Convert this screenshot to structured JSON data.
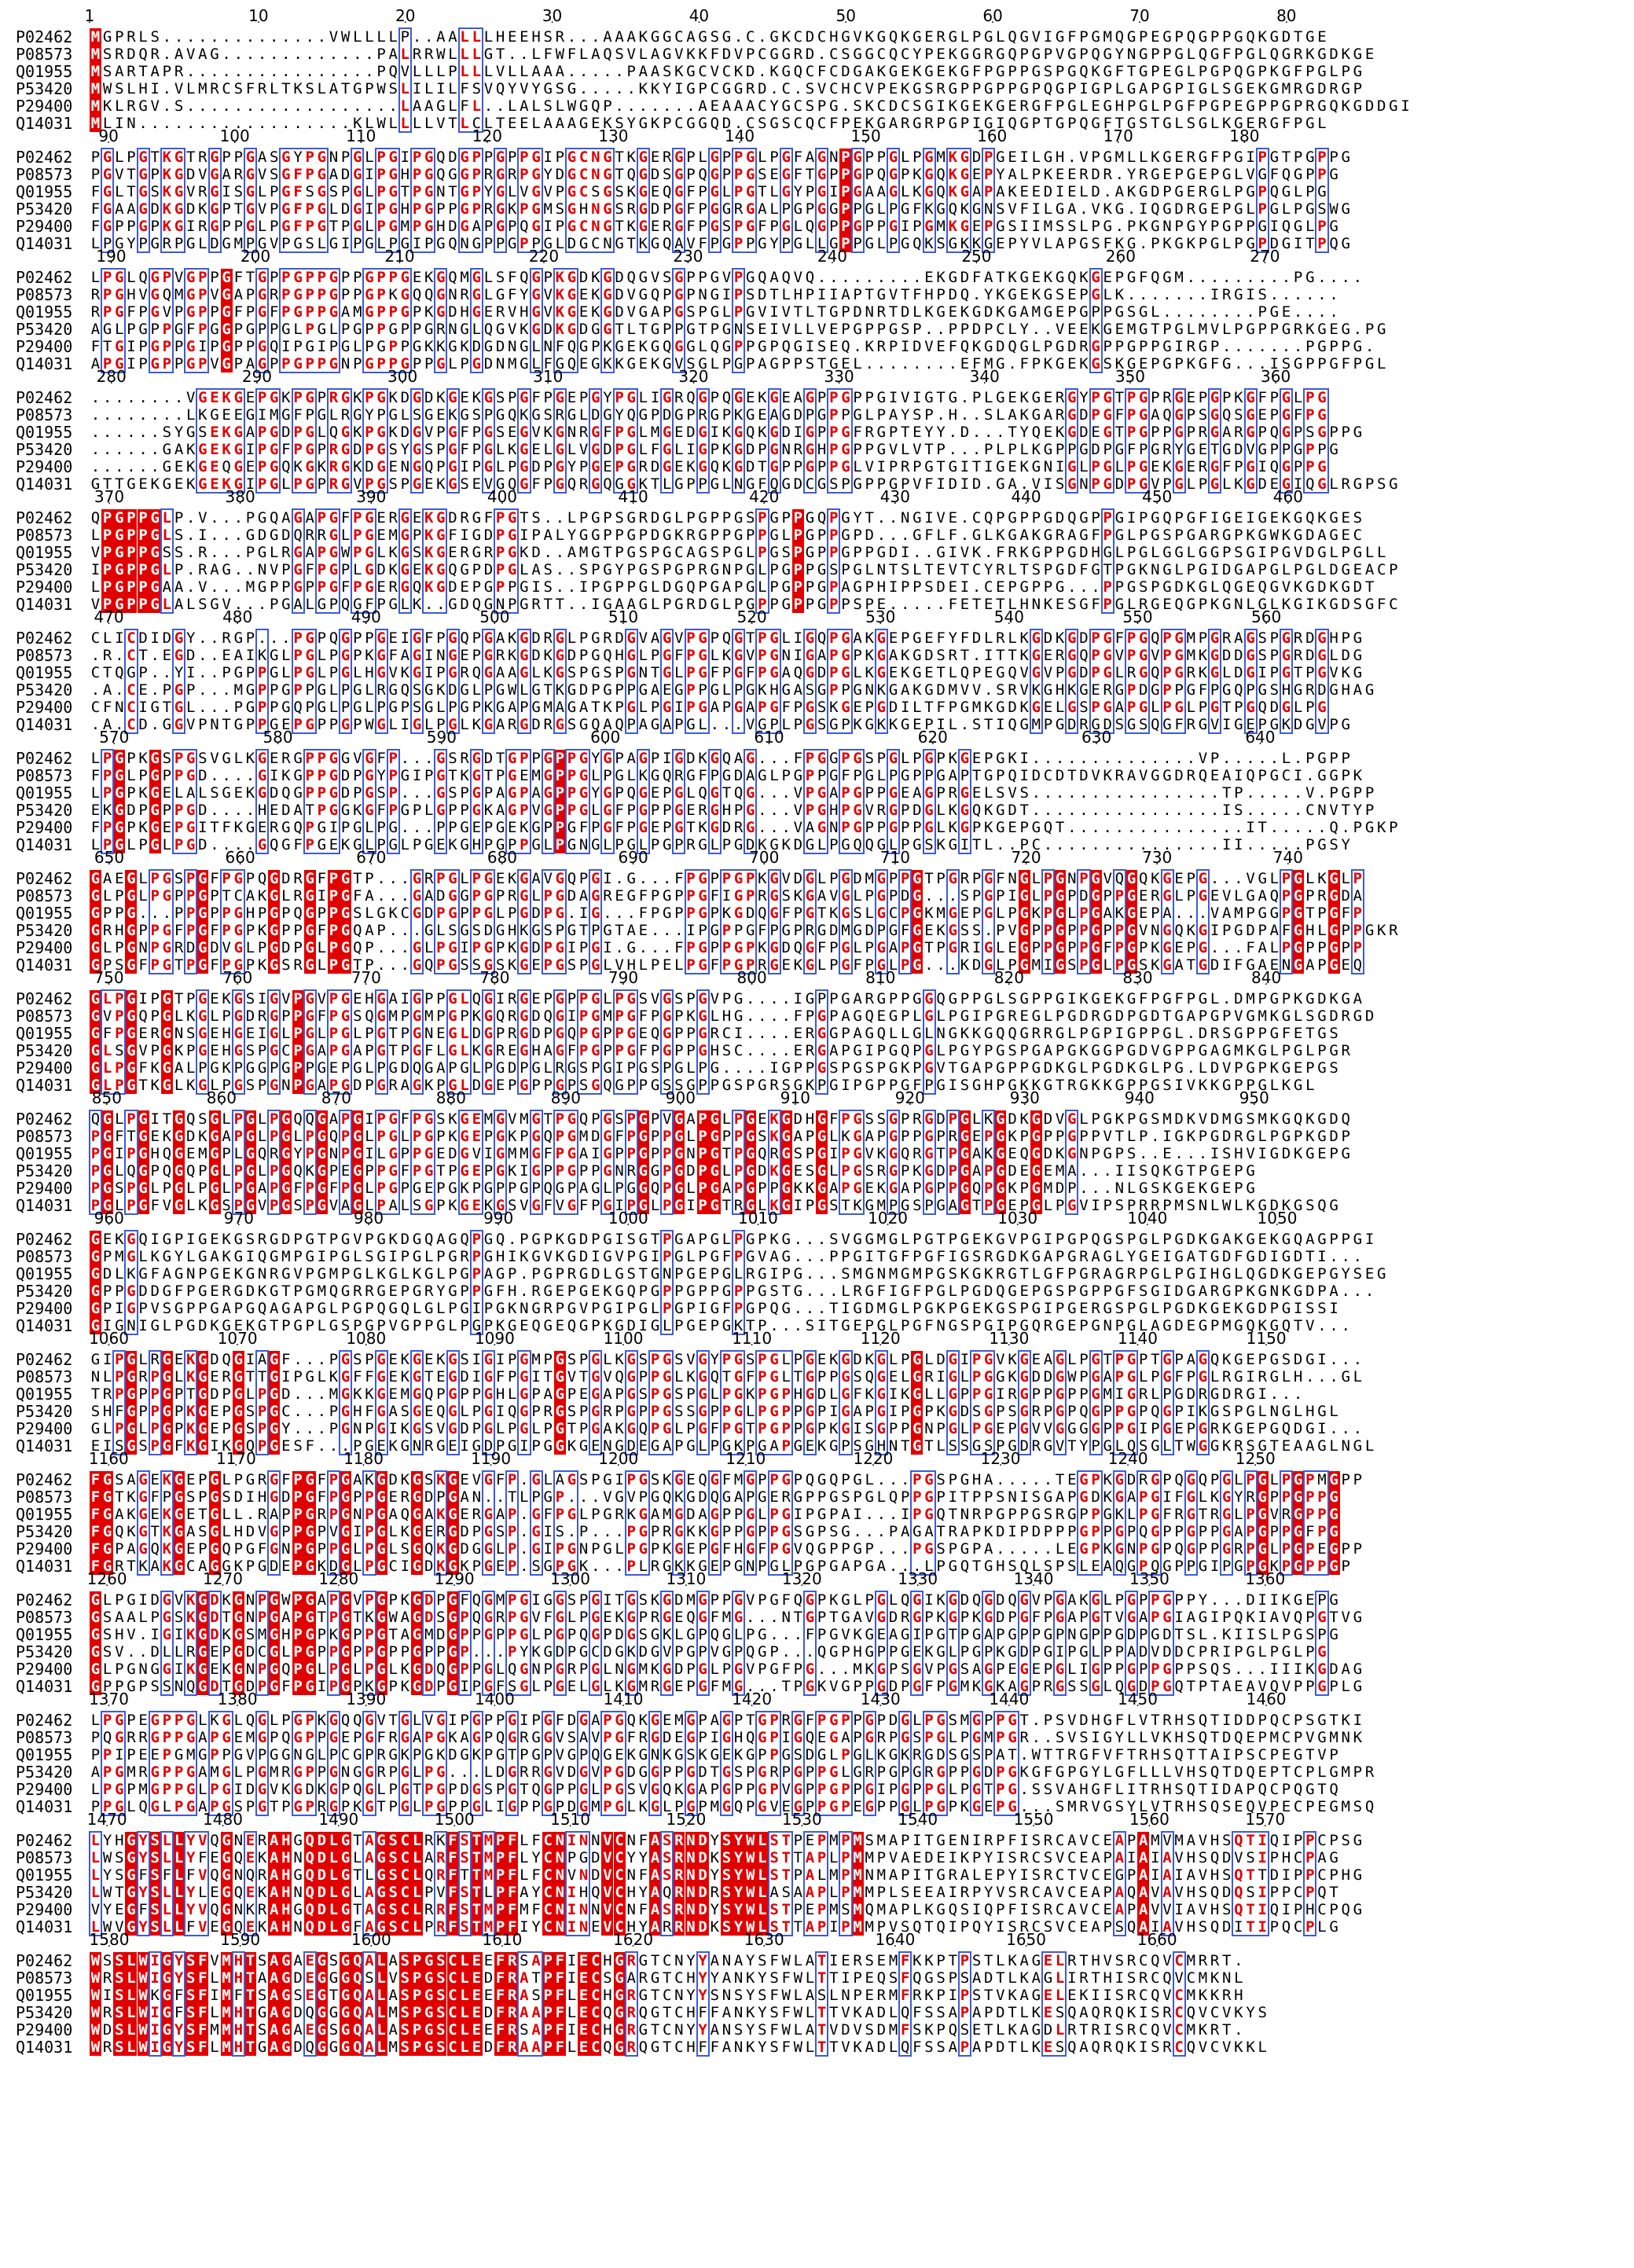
{
  "figure": {
    "type": "multiple-sequence-alignment",
    "colors": {
      "identical_bg": "#e10000",
      "identical_fg": "#ffffff",
      "similar_fg": "#e10000",
      "box_border": "#3d5bd6",
      "text": "#000000"
    },
    "sequence_names": [
      "P02462",
      "P08573",
      "Q01955",
      "P53420",
      "P29400",
      "Q14031"
    ],
    "blocks": [
      {
        "ruler": [
          "1",
          "10",
          "20",
          "30",
          "40",
          "50",
          "60",
          "70",
          "80"
        ],
        "rows": [
          "MGPRLS..............VWLLLLP..AALLLHEEHSR...AAAKGGCAGSG.C.GKCDCHGVKGQKGERGLPGLQGVIGFPGMQGPEGPQGPPGQKGDTGE",
          "MSRDQR.AVAG.............PALRRWLLLGT..LFWFLAQSVLAGVKKFDVPCGGRD.CSGGCQCYPEKGGRGQPGPVGPQGYNGPPGLQGFPGLQGRKGDKGE",
          "MSARTAPR................PQVLLLPLLLVLLAAA.....PAASKGCVCKD.KGQCFCDGAKGEKGEKGFPGPPGSPGQKGFTGPEGLPGPQGPKGFPGLPG",
          "MWSLHI.VLMRCSFRLTKSLATGPWSLILILFSVQYVYGSG.....KKYIGPCGGRD.C.SVCHCVPEKGSRGPPGPPGPQGPIGPLGAPGPIGLSGEKGMRGDRGP",
          "MKLRGV.S..................LAAGLFL..LALSLWGQP.......AEAAACYGCSPG.SKCDCSGIKGEKGERGFPGLEGHPGLPGFPGPEGPPGPRGQKGDDGI",
          "MLIN..................KLWLLLLVTLCLTEELAAAGEKSYGKPCGGQD.CSGSCQCFPEKGARGRPGPIGIQGPTGPQGFTGSTGLSGLKGERGFPGL"
        ]
      },
      {
        "ruler": [
          "90",
          "100",
          "110",
          "120",
          "130",
          "140",
          "150",
          "160",
          "170",
          "180"
        ],
        "rows": [
          "PGLPGTKGTRGPPGASGYPGNPGLPGIPGQDGPPGPPGIPGCNGTKGERGPLGPPGLPGFAGNPGPPGLPGMKGDPGEILGH.VPGMLLKGERGFPGIPGTPGPPG",
          "PGVTGPKGDVGARGVSGFPGADGIPGHPGQGGPRGRPGYDGCNGTQGDSGPQGPPGSEGFTGPPGPQGPKGQKGEPYALPKEERDR.YRGEPGEPGLVGFQGPPG",
          "FGLTGSKGVRGISGLPGFSGSPGLPGTPGNTGPYGLVGVPGCSGSKGEQGFPGLPGTLGYPGIPGAAGLKGQKGAPAKEEDIELD.AKGDPGERGLPGPQGLPG",
          "FGAAGDKGDKGPTGVPGFPGLDGIPGHPGPPGPRGKPGMSGHNGSRGDPGFPGGRGALPGPGGPPGLPGFKGQKGNSVFILGA.VKG.IQGDRGEPGLPGLPGSWG",
          "FGPPGPKGIRGPPGLPGFPGTPGLPGMPGHDGAPGPQGIPGCNGTKGERGFPGSPGFPGLQGPPGPPGIPGMKGEPGSIIMSSLPG.PKGNPGYPGPPGIQGLPG",
          "LPGYPGRPGLDGMPGVPGSLGIPGLPGIPGQNGPPGPPGLDGCNGTKGQAVFPGPPGYPGLLGPPGLPGQKSGKKGEPYVLAPGSFKG.PKGKPGLPGPDGITPQG"
        ]
      },
      {
        "ruler": [
          "190",
          "200",
          "210",
          "220",
          "230",
          "240",
          "250",
          "260",
          "270"
        ],
        "rows": [
          "LPGLQGPVGPPGFTGPPGPPGPPGPPGEKGQMGLSFQGPKGDKGDQGVSGPPGVPGQAQVQ.........EKGDFATKGEKGQKGEPGFQGM.........PG....",
          "RPGHVGQMGPVGAPGRPGPPGPPGPKGQQGNRGLGFYGVKGEKGDVGQPGPNGIPSDTLHPIIAPTGVTFHPDQ.YKGEKGSEPGLK.......IRGIS......",
          "RPGFPGVPGPPGFPGFPGPPGAMGPPGPKGDHGERVHGVKGEKGDVGAPGSPGLPGVIVTLTGPDNRTDLKGEKGDKGAMGEPGPPGSGL........PGE....",
          "AGLPGPPGFPGGPGPPGLPGLPGPPGPPGRNGLQGVKGDKGDGGTLTGPPGTPGNSEIVLLVEPGPPGSP..PPDPCLY..VEEKGEMGTPGLMVLPGPPGRKGEG.PG",
          "FTGIPGPPGIPGPPGQIPGIPGLPGPPGKKGKDGDNGLNFQGPKGEKGQGGLQGPPGPQGISEQ.KRPIDVEFQKGDQGLPGDRGPPGPPGIRGP.......PGPPG.",
          "APGIPGPPGPVGPAGPPGPPGNPGPPGPPGLPGDNMGLFGQEGKKGEKGVSGLPGPAGPPSTGEL........EFMG.FPKGEKGSKGEPGPKGFG...ISGPPGFPGL"
        ]
      },
      {
        "ruler": [
          "280",
          "290",
          "300",
          "310",
          "320",
          "330",
          "340",
          "350",
          "360"
        ],
        "rows": [
          "........VGEKGEPGKPGPRGKPGKDGDKGEKGSPGFPGEPGYPGLIGRQGPQGEKGEAGPPGPPGIVIGTG.PLGEKGERGYPGTPGPRGEPGPKGFPGLPG",
          "........LKGEEGIMGFPGLRGYPGLSGEKGSPGQKGSRGLDGYQGPDGPRGPKGEAGDPGPPGLPAYSP.H..SLAKGARGDPGFPGAQGPSGQSGEPGFPG",
          "......SYGSEKGAPGDPGLQGKPGKDGVPGFPGSEGVKGNRGFPGLMGEDGIKGQKGDIGPPGFRGPTEYY.D...TYQEKGDEGTPGPPGPRGARGPQGPSGPPG",
          "......GAKGEKGIPGFPGPRGDPGSYGSPGFPGLKGELGLVGDPGLFGLIGPKGDPGNRGHPGPPGVLVTP...PLPLKGPPGDPGFPGRYGETGDVGPPGPPG",
          "......GEKGEQGEPGQKGKRGKDGENGQPGIPGLPGDPGYPGEPGRDGEKGQKGDTGPPGPPGLVIPRPGTGITIGEKGNIGLPGLPGEKGERGFPGIQGPPG",
          "GTTGEKGEKGEKGIPGLPGPRGVPGSPGEKGSEVGQGFPGQRGQGGKTLGPPGLNGFQGDCGSPGPPGPVFIDID.GA.VISGNPGDPGVPGLPGLKGDEGIQGLRGPSG"
        ]
      },
      {
        "ruler": [
          "370",
          "380",
          "390",
          "400",
          "410",
          "420",
          "430",
          "440",
          "450",
          "460"
        ],
        "rows": [
          "QPGPPGLP.V...PGQAGAPGFPGERGEKGDRGFPGTS..LPGPSGRDGLPGPPGSPGPPGQPGYT..NGIVE.CQPGPPGDQGPPGIPGQPGFIGEIGEKGQKGES",
          "LPGPPGLS.I...GDGDQRRGLPGEMGPKGFIGDPGIPALYGGPPGPDGKRGPPGPPGLPGPPGPD...GFLF.GLKGAKGRAGFPGLPGSPGARGPKGWKGDAGEC",
          "VPGPPGSS.R...PGLRGAPGWPGLKGSKGERGRPGKD..AMGTPGSPGCAGSPGLPGSPGPPGPPGDI..GIVK.FRKGPPGDHGLPGLGGLGGPSGIPGVDGLPGLL",
          "IPGPPGLP.RAG..NVPGFPGPLGDKGEKGQGPDPGLAS..SPGYPGSPGPRGNPGLPGPPGSPGLNTSLTEVTCYRLTSPGDFGTPGKNGLPGIDGAPGLPGLDGEACP",
          "LPGPPGAA.V...MGPPGPPGFPGERGQKGDEPGPPGIS..IPGPPGLDGQPGAPGLPGPPGPAGPHIPPSDEI.CEPGPPG...PPGSPGDKGLQGEQGVKGDKGDT",
          "VPGPPGLALSGV...PGALGPQGFPGLK..GDQGNPGRTT..IGAAGLPGRDGLPGPPGPPGPPSPE.....FETETLHNKESGFPGLRGEQGPKGNLGLKGIKGDSGFC"
        ]
      },
      {
        "ruler": [
          "470",
          "480",
          "490",
          "500",
          "510",
          "520",
          "530",
          "540",
          "550",
          "560"
        ],
        "rows": [
          "CLICDIDGY..RGP...PGPQGPPGEIGFPGQPGAKGDRGLPGRDGVAGVPGPQGTPGLIGQPGAKGEPGEFYFDLRLKGDKGDPGFPGQPGMPGRAGSPGRDGHPG",
          ".R.CT.EGD..EAIKGLPGLPGPKGFAGINGEPGRKGDKGDPGQHGLPGFPGLKGVPGNIGAPGPKGAKGDSRT.ITTKGERGQPGVPGVPGMKGDDGSPGRDGLDG",
          "CTQGP..YI..PGPPGLPGLPGLHGVKGIPGRQGAAGLKGSPGSPGNTGLPGFPGFPGAQGDPGLKGEKGETLQPEGQVGVPGDPGLRGQPGRKGLDGIPGTPGVKG",
          ".A.CE.PGP...MGPPGPPGLPGLRGQSGKDGLPGWLGTKGDPGPPGAEGPPGLPGKHGASGPPGNKGAKGDMVV.SRVKGHKGERGPDGPPGFPGQPGSHGRDGHAG",
          "CFNCIGTGL...PGPPGQPGLPGLPGPSGLPGPKGAPGMAGATKPGLPGIPGAPGAPGFPGSKGEPGDILTFPGMKGDKGELGSPGAPGLPGLPGTPGQDGLPG",
          ".A.CD.GGVPNTGPPGEPGPPGPWGLIGLPGLKGARGDRGSGQAQPAGAPGL...VGPLPGSGPKGKKGEPIL.STIQGMPGDRGDSGSQGFRGVIGEPGKDGVPG"
        ]
      },
      {
        "ruler": [
          "570",
          "580",
          "590",
          "600",
          "610",
          "620",
          "630",
          "640"
        ],
        "rows": [
          "LPGPKGSPGSVGLKGERGPPGGVGFP...GSRGDTGPPGPPGYGPAGPIGDKGQAG...FPGGPGSPGLPGPKGEPGKI..............VP.....L.PGPP",
          "FPGLPGPPGD....GIKGPPGDPGYPGIPGTKGTPGEMGPPGLPGLKGQRGFPGDAGLPGPPGFPGLPGPPGAPTGPQIDCDTDVKRAVGGDRQEAIQPGCI.GGPK",
          "LPGPKGELALSGEKGDQGPPGDPGSP...GSPGPAGPAGPPGYGPQGEPGLQGTQG...VPGAPGPPGEAGPRGELSVS................TP.....V.PGPP",
          "EKGDPGPPGD....HEDATPGGKGFPGPLGPPGKAGPVGPPGLGFPGPPGERGHPG...VPGHPGVRGPDGLKGQKGDT................IS.....CNVTYP",
          "FPGPKGEPGITFKGERGQPGIPGLPG...PPGEPGEKGPPGFPGFPGEPGTKGDRG...VAGNPGPPGPPGLKGPKGEPGQT...............IT.....Q.PGKP",
          "LPGLPGLPGD....GQGFPGEKGLPGLPGEKGHPGPPGLPGNGLPGLPGPRGLPGDKGKDGLPGQQGLPGSKGITL..PC...............II.....PGSY"
        ]
      },
      {
        "ruler": [
          "650",
          "660",
          "670",
          "680",
          "690",
          "700",
          "710",
          "720",
          "730",
          "740"
        ],
        "rows": [
          "GAEGLPGSPGFPGPQGDRGFPGTP...GRPGLPGEKGAVGQPGI.G...FPGPPGPKGVDGLPGDMGPPGTPGRPGFNGLPGNPGVQGQKGEPG...VGLPGLKGLP",
          "GLPGLPGPPGPTCAKGLRGIPGFA...GADGGPGPRGLPGDAGREGFPGPPGFIGPRGSKGAVGLPGPDG...SPGPIGLPGPDGPPGERGLPGEVLGAQPGPRGDA",
          "GPPG...PPGPPGHPGPQGPPGSLGKCGDPGPPGLPGDPG.IG...FPGPPGPKGDQGFPGTKGSLGCPGKMGEPGLPGKPGLPGAKGEPA...VAMPGGPGTPGFP",
          "GRHGPPGFPGFPGPKGPPGFPGQAP...GLSGSDGHKGSPGTPGTAE...IPGPPGFPGPRGDMGDPGFGEKGSS.PVGPPGPPGPPGVNGQKGIPGDPAFGHLGPPGKR",
          "GLPGNPGRDGDVGLPGDPGLPGQP...GLPGIPGPKGDPGIPGI.G...FPGPPGPKGDQGFPGLPGAPGTPGRIGLEGPPGPPGFPGPKGEPG...FALPGPPGPP",
          "GPSGFPGTPGFPGPKGSRGLPGTP...GQPGSSGSKGEPGSPGLVHLPELPGFPGPRGEKGLPGFPGLPG...KDGLPGMIGSPGLPGSKGATGDIFGAENGAPGEQ"
        ]
      },
      {
        "ruler": [
          "750",
          "760",
          "770",
          "780",
          "790",
          "800",
          "810",
          "820",
          "830",
          "840"
        ],
        "rows": [
          "GLPGIPGTPGEKGSIGVPGVPGEHGAIGPPGLQGIRGEPGPPGLPGSVGSPGVPG....IGPPGARGPPGGQGPPGLSGPPGIKGEKGFPGFPGL.DMPGPKGDKGA",
          "GVPGQPGLKGLPGDRGPPGFPGSQGMPGMPGPKGQRGDQGIPGMPGFPGPKGLHG....FPGPAGQEGPLGLPGIPGREGLPGDRGDPGDTGAPGPVGMKGLSGDRGD",
          "GFPGERGNSGEHGEIGLPGLPGLPGTPGNEGLDGPRGDPGQPGPPGEQGPPGRCI....ERGGPAGQLLGLNGKKGQQGRRGLPGPIGPPGL.DRSGPPGFETGS",
          "GLSGVPGKPGEHGSPGCPGAPGAPGTPGFLGLKGREGHAGFPGPPGFPGPPGHSC....ERGAPGIPGQPGLPGYPGSPGAPGKGGPGDVGPPGAGMKGLPGLPGR",
          "GLPGFKGALPGKPGGPGPPGEPGLPGDQGAPGLPGDPGLRGSPGIPGSPGLPG....IGPPGSPGSPGKPGVTGAPGPPGDKGLPGDKGLPG.LDVPGPKGEPGS",
          "GLPGTKGLKGLPGSPGNPGAPGDPGRAGKPGLDGEPGPPGPSGQGPPGSSGPPGSPGRSGKPGIPGPPGFPGISGHPGKKGTRGKKGPPGSIVKKGPPGLKGL"
        ]
      },
      {
        "ruler": [
          "850",
          "860",
          "870",
          "880",
          "890",
          "900",
          "910",
          "920",
          "930",
          "940",
          "950"
        ],
        "rows": [
          "QGLPGITGQSGLPGLPGQQGAPGIPGFPGSKGEMGVMGTPGQPGSPGPVGAPGLPGEKGDHGFPGSSGPRGDPGLKGDKGDVGLPGKPGSMDKVDMGSMKGQKGDQ",
          "PGFTGEKGDKGAPGLPGLPGQPGLPGLPGPKGEPGKPGQPGMDGFPGPPGLPGPPGSKGAPGLKGAPGPPGPRGEPGKPGPPGPPVTLP.IGKPGDRGLPGPKGDP",
          "PGIPGHQGEMGPLGQRGYPGNPGILGPPGEDGVIGMMGFPGAIGPPGPPGNPGTPGQRGSPGIPGVKGQRGTPGAKGEQGDKGNPGPS..E...ISHVIGDKGEPG",
          "PGLQGPQGQPGLPGLPGQKGPEGPPGFPGTPGEPGKIGPPGPPGNRGGPGDPGLPGDKGESGLPGSRGPKGDPGAPGDEGEMA...IISQKGTPGEPG",
          "PGSPGLPGLPGLPGAPGFPGFPGLPGPGEPGKPGPPGPQGPAGLPGGQPGLPGAPGPPGKKGAPGEKGAPGPPGQPGKPGMDP...NLGSKGEKGEPG",
          "PGLPGFVGLKGSPGVPGSPGVAGLPALSGPKGEKGSVGFVGFPGIPGLPGIPGTRGLKGIPGSTKGMPGSPGAGTPGEPGLPGVIPSPRRPMSNLWLKGDKGSQG"
        ]
      },
      {
        "ruler": [
          "960",
          "970",
          "980",
          "990",
          "1000",
          "1010",
          "1020",
          "1030",
          "1040",
          "1050"
        ],
        "rows": [
          "GEKGQIGPIGEKGSRGDPGTPGVPGKDGQAGQPGQ.PGPKGDPGISGTPGAPGLPGPKG...SVGGMGLPGTPGEKGVPGIPGPQGSPGLPGDKGAKGEKGQAGPPGI",
          "GPMGLKGYLGAKGIQGMPGIPGLSGIPGLPGRPGHIKGVKGDIGVPGIPGLPGFPGVAG...PPGITGFPGFIGSRGDKGAPGRAGLYGEIGATGDFGDIGDTI...",
          "GDLKGFAGNPGEKGNRGVPGMPGLKGLKGLPGPAGP.PGPRGDLGSTGNPGEPGLRGIPG...SMGNMGMPGSKGKRGTLGFPGRAGRPGLPGIHGLQGDKGEPGYSEG",
          "GPPGDDGFPGERGDKGTPGMQGRRGEPGRYGPPGFH.RGEPGEKGQPGPPGPPGPPGSTG...LRGFIGFPGLPGDQGEPGSPGPPGFSGIDGARGPKGNKGDPA...",
          "GPIGPVSGPPGAPGQAGAPGLPGPQGQLGLPGIPGKNGRPGVPGIPGLPGPIGFPGPQG...TIGDMGLPGKPGEKGSPGIPGERGSPGLPGDKGEKGDPGISSI",
          "GIGNIGLPGDKGEKGTPGPLGSPGPVGPPGLPGPKGEQGEQGPKGDIGLPGEPGKTP...SITGEPGLPGFNGSPGIPGQRGEPGNPGLAGDEGPMGQKGQTV..."
        ]
      },
      {
        "ruler": [
          "1060",
          "1070",
          "1080",
          "1090",
          "1100",
          "1110",
          "1120",
          "1130",
          "1140",
          "1150"
        ],
        "rows": [
          "GIPGLRGEKGDQGIAGF...PGSPGEKGEKGSIGIPGMPGSPGLKGSPGSVGYPGSPGLPGEKGDKGLPGLDGIPGVKGEAGLPGTPGPTGPAGQKGEPGSDGI...",
          "NLPGRPGLKGERGTTGIPGLKGFFGEKGTEGDIGFPGITGVTGVQGPPGLKGQTGFPGLTGPPGSQGELGRIGLPGGKGDDGWPGAPGLPGFPGLRGIRGLH...GL",
          "TRPGPPGPTGDPGLPGD...MGKKGEMGQPGPPGHLGPAGPEGAPGSPGSPGLPGKPGPHGDLGFKGIKGLLGPPGIRGPPGPPGMIGRLPGDRGDRGI...",
          "SHFGPPGPKGEPGSPGC...PGHFGASGEQGLPGIQGPRGSPGRPGPPGSSGPPGLPGPPGPIGAPGIPGPKGDSGPSGRPGPQGPPGPQGPIKGSPGLNGLHGL",
          "GLPGLPGPKGEPGSPGY...PGNPGIKGSVGDPGLPGLPGTPGAKGQPGLPGFPGTPGPPGPKGISGPPGNPGLPGEPGVVGGGGPPGIPGEPGRKGEPGQDGI...",
          "EISGSPGFKGIKGQPGESF...PGEKGNRGEIGDPGIPGGKGENGDEGAPGLPGKPGAPGEKGPSGHNTGTLSSGSPGDRGVTYPGLQSGLTWGGKRSGTEAAGLNGL"
        ]
      },
      {
        "ruler": [
          "1160",
          "1170",
          "1180",
          "1190",
          "1200",
          "1210",
          "1220",
          "1230",
          "1240",
          "1250"
        ],
        "rows": [
          "FGSAGEKGEPGLPGRGFPGFPGAKGDKGSKGEVGFP.GLAGSPGIPGSKGEQGFMGPPGPQGQPGL...PGSPGHA.....TEGPKGDRGPQGQPGLPGLPGPMGPP",
          "FGTKGFPGSPGSDIHGDPGFPGPPGERGDPGAN..TLPGP...VGVPGQKGDQGAPGERGPPGSPGLQPPGPITPPSNISGAPGDKGAPGIFGLKGYRGPPGPPG",
          "FGAKGEKGETGLL.RAPPGRPGNPGAQGAKGERGAP.GFPGLPGRKGAMGDAGPPGLPGIPGPAI...IPGQTNRPGPPGSRGPPGKLPGFRGTRGLPGVRGPPG",
          "FGQKGTKGASGLHDVGPPGPVGIPGLKGERGDPGSP.GIS.P...PGPRGKKGPPGPPGSGPSG...PAGATRAPKDIPDPPPGPPGPQGPPGPPGAPGPPGFPG",
          "FGPAGQKGEPGQPGFGNPGPPGLPGLSGQKGDGGLP.GIPGNPGLPGPKGEPGFHGFPGVQGPPGP...PGSPGPA.....LEGPKGNPGPQGPPGRPGLPGPEGPP",
          "FGRTKAKGCAGGKPGDEPGKDGLPGCIGDKGKPGEP.SGPGK...PLRGKKGEPGNPGLPGPGAPGA...LPGQTGHSQLSPSLEAQGPQGPPGIPGPGKPGPPGP"
        ]
      },
      {
        "ruler": [
          "1260",
          "1270",
          "1280",
          "1290",
          "1300",
          "1310",
          "1320",
          "1330",
          "1340",
          "1350",
          "1360"
        ],
        "rows": [
          "GLPGIDGVKGDKGNPGWPGAPGVPGPKGDPGFQGMPGIGGSPGITGSKGDMGPPGVPGFQGPKGLPGLQGIKGDQGDQGVPGAKGLPGPPGPPY...DIIKGEPG",
          "GSAALPGSKGDTGNPGAPGTPGTKGWAGDSGPQGRPGVFGLPGEKGPRGEQGFMG...NTGPTGAVGDRGPKGPKGDPGFPGAPGTVGAPGIAGIPQKIAVQPGTVG",
          "GSHV.IGIKGDKGSMGHPGPKGPPGTAGMDGPPGPPGLPGPQGPDGSGKLGPQGLPG...FPGVKGEAGIPGTPGAPGPPGPNGPPGDPGDTSL.KIISLPGSPG",
          "GSV..DLLRGEPGDCGLPGPPGPPGPPGPPGP...PYKGDPGCDGKDGVPGPVGPQGP...QGPHGPPGEKGLPGPKGDPGIPGLPPADVDDCPRIPGLPGLPG",
          "GLPGNGGIKGEKGNPGQPGLPGLPGLKGDQGPPGLQGNPGRPGLNGMKGDPGLPGVPGFPG...MKGPSGVPGSAGPEGEPGLIGPPGPPGPPSQS...IIIKGDAG",
          "GPPGPSSNQGDTGDPGFPGIPGPKGPKGDPGIPGFSGLPGELGLKGMRGEPGFMG...TPGKVGPPGDPGFPGMKGKAGPRGSSGLQGDPGQTPTAEAVQVPPGPLG"
        ]
      },
      {
        "ruler": [
          "1370",
          "1380",
          "1390",
          "1400",
          "1410",
          "1420",
          "1430",
          "1440",
          "1450",
          "1460"
        ],
        "rows": [
          "LPGPEGPPGLKGLQGLPGPKGQQGVTGLVGIPGPPGIPGFDGAPGQKGEMGPAGPTGPRGFPGPPGPDGLPGSMGPPGT.PSVDHGFLVTRHSQTIDDPQCPSGTKI",
          "PQGRRGPPGAPGEMGPQGPPGEPGFRGAPGKAGPQGRGGVSAVPGFRGDEGPIGHQGPIGQEGAPGRPGSPGLPGMPGR..SVSIGYLLVKHSQTDQEPMCPVGMNK",
          "PPIPEEPGMGPPGVPGGNGLPCGPRGKPGKDGKPGTPGPVGPQGEKGNKGSKGEKGPPGSDGLPGLKGKRGDSGSPAT.WTTRGFVFTRHSQTTAIPSCPEGTVP",
          "APGMRGPPGAMGLPGMRGPPGNGGRPGLPG...LDGRRGVDGVPGDGGPPGDTGSPGRPGPPGLGRPGPGRGPPGDPGKGFGPGYLGFLLLVHSQTDQEPTCPLGMPR",
          "LPGPMGPPGLPGIDGVKGDKGPQGLPGTPGPDGSPGTQGPPGLPGSVGQKGAPGPPGPVGPPGPPGIPGPPGLPGTPG.SSVAHGFLITRHSQTIDAPQCPQGTQ",
          "PPGLQGLPGAPGSPGTPGPRGPKGTPGLPGPPGLIGPPGPDGMPGLKGLPGPMGQPGVEGPPGPEGPPGLPGPKGEPG...SMRVGSYLVTRHSQSEQVPECPEGMSQ"
        ]
      },
      {
        "ruler": [
          "1470",
          "1480",
          "1490",
          "1500",
          "1510",
          "1520",
          "1530",
          "1540",
          "1550",
          "1560",
          "1570"
        ],
        "rows": [
          "LYHGYSLLYVQGNERAHGQDLGTAGSCLRKFSTMPFLFCNINNVCNFASRNDYSYWLSTPEPMPMSMAPITGENIRPFISRCAVCEAPAMVMAVHSQTIQIPPCPSG",
          "LWSGYSLLYFEGQEKAHNQDLGLAGSCLARFSTMPFLYCNPGDVCYYASRNDKSYWLSTTAPLPMMPVAEDEIKPYISRCSVCEAPAIAIAVHSQDVSIPHCPAG",
          "LYSGFSFLFVQGNQRAHGQDLGTLGSCLQRFTTMPFLFCNVNDVCNFASRNDYSYWLSTPALMPMNMAPITGRALEPYISRCTVCEGPAIAIAVHSQTTDIPPCPHG",
          "LWTGYSLLYLEGQEKAHNQDLGLAGSCLPVFSTLPFAYCNIHQVCHYAQRNDRSYWLASAAPLPMMPLSEEAIRPYVSRCAVCEAPAQAVAVHSQDQSIPPCPQT",
          "VYEGFSLLYVQGNKRAHGQDLGTAGSCLRRFSTMPFMFCNINNVCNFASRNDYSYWLSTPEPMSMQMAPLKGQSIQPFISRCAVCEAPAVVIAVHSQTIQIPHCPQG",
          "LWVGYSLLFVEGQEKAHNQDLGFAGSCLPRFSTMPFIYCNINEVCHYARRNDKSYWLSTTAPIPMMPVSQTQIPQYISRCSVCEAPSQAIAVHSQDITIPQCPLG"
        ]
      },
      {
        "ruler": [
          "1580",
          "1590",
          "1600",
          "1610",
          "1620",
          "1630",
          "1640",
          "1650",
          "1660"
        ],
        "rows": [
          "WSSLWIGYSFVMHTSAGAEGSGQALASPGSCLEEFRSAPFIECHGRGTCNYYANAYSFWLATIERSEMFKKPTPSTLKAGELRTHVSRCQVCMRRT.",
          "WRSLWIGYSFLMHTAAGDEGGGQSLVSPGSCLEDFRATPFIECSGARGTCHYYANKYSFWLTTIPEQSFQGSPSADTLKAGLIRTHISRCQVCMKNL",
          "WISLWKGFSFIMFTSAGSEGTGQALASPGSCLEEFRASPFLECHGRGTCNYYSNSYSFWLASLNPERMFRKPIPSTVKAGELEKIISRCQVCMKKRH",
          "WRSLWIGFSFLMHTGAGDQGGGQALMSPGSCLEDFRAAPFLECQGRQGTCHFFANKYSFWLTTVKADLQFSSAPAPDTLKESQAQRQKISRCQVCVKYS",
          "WDSLWIGYSFMMHTSAGAEGSGQALASPGSCLEEFRSAPFIECHGRGTCNYYANSYSFWLATVDVSDMFSKPQSETLKAGDLRTRISRCQVCMKRT.",
          "WRSLWIGYSFLMHTGAGDQGGGQALMSPGSCLEDFRAAPFLECQGRQGTCHFFANKYSFWLTTVKADLQFSSAPAPDTLKESQAQRQKISRCQVCVKKL"
        ]
      }
    ]
  }
}
